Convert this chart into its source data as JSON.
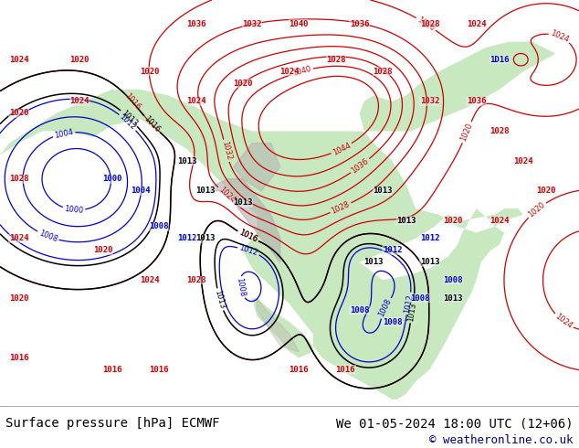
{
  "bottom_left_text": "Surface pressure [hPa] ECMWF",
  "bottom_right_text": "We 01-05-2024 18:00 UTC (12+06)",
  "bottom_copyright": "© weatheronline.co.uk",
  "bottom_text_color": "#000000",
  "copyright_color": "#000080",
  "text_fontsize": 10,
  "copyright_fontsize": 9,
  "fig_width": 6.34,
  "fig_height": 4.9,
  "dpi": 100,
  "ocean_color": "#e8eef5",
  "land_color": "#c8e8c0",
  "mountain_color": "#b8b8b8",
  "isobar_red": "#cc0000",
  "isobar_blue": "#0000cc",
  "isobar_black": "#000000"
}
